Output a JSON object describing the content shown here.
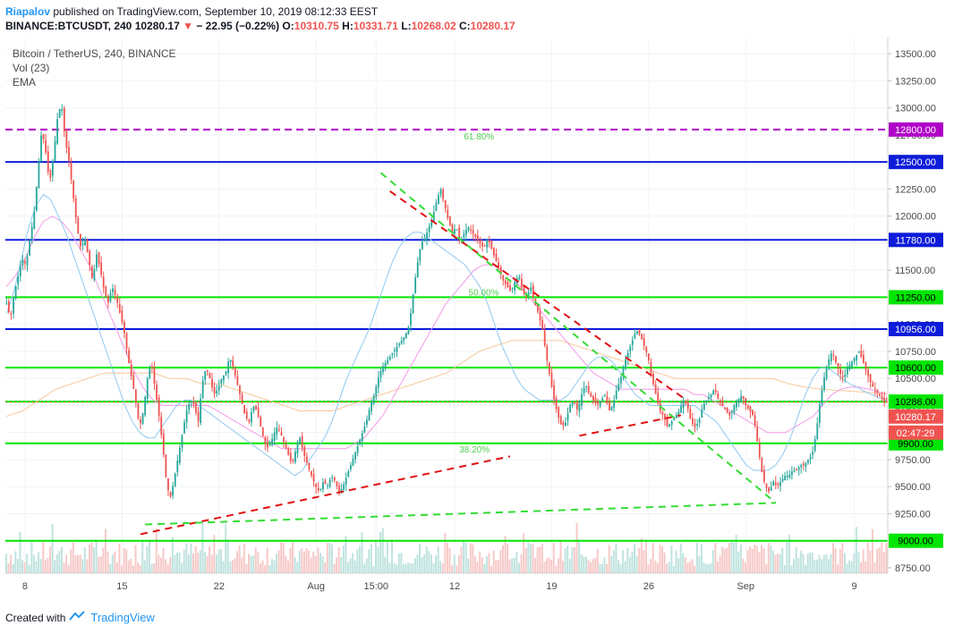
{
  "header": {
    "user": "Riapalov",
    "published": "published on TradingView.com, September 10, 2019 08:12:33 EEST"
  },
  "ohlc": {
    "symbol": "BINANCE:BTCUSDT, 240",
    "last": "10280.17",
    "change": "− 22.95 (−0.22%)",
    "o_label": "O:",
    "o": "10310.75",
    "h_label": "H:",
    "h": "10331.71",
    "l_label": "L:",
    "l": "10268.02",
    "c_label": "C:",
    "c": "10280.17"
  },
  "legend": {
    "title": "Bitcoin / TetherUS, 240, BINANCE",
    "vol": "Vol (23)",
    "ema": "EMA"
  },
  "footer": {
    "created": "Created with",
    "brand": "TradingView"
  },
  "colors": {
    "up": "#26a69a",
    "down": "#ef5350",
    "green_level": "#00e600",
    "blue_level": "#0d1cd9",
    "magenta_level": "#b000c8",
    "red_trend": "#e01010",
    "green_trend": "#33dd33",
    "ema_fast": "#8ec9f0",
    "ema_mid": "#f29ae6",
    "ema_slow": "#f6c89a",
    "last_price_badge": "#ef5350",
    "countdown_badge": "#ef5350"
  },
  "chart_data": {
    "type": "candlestick",
    "symbol": "BTC/USDT",
    "timeframe": "240",
    "exchange": "BINANCE",
    "ylim": [
      8700,
      13650
    ],
    "y_ticks": [
      8750,
      9000,
      9250,
      9500,
      9750,
      10000,
      10250,
      10500,
      10750,
      11000,
      11250,
      11500,
      11750,
      12000,
      12250,
      12500,
      12750,
      13000,
      13250,
      13500
    ],
    "y_tick_labels": [
      "8750.00",
      "9000.00",
      "9250.00",
      "9500.00",
      "9750.00",
      "10000.00",
      "10250.00",
      "10500.00",
      "10750.00",
      "11000.00",
      "11250.00",
      "11500.00",
      "11750.00",
      "12000.00",
      "12250.00",
      "12500.00",
      "12750.00",
      "13000.00",
      "13250.00",
      "13500.00"
    ],
    "x_tick_labels": [
      {
        "label": "8",
        "bar": 8
      },
      {
        "label": "15",
        "bar": 50
      },
      {
        "label": "22",
        "bar": 92
      },
      {
        "label": "Aug",
        "bar": 134
      },
      {
        "label": "15:00",
        "bar": 160
      },
      {
        "label": "12",
        "bar": 194
      },
      {
        "label": "19",
        "bar": 236
      },
      {
        "label": "26",
        "bar": 278
      },
      {
        "label": "Sep",
        "bar": 320
      },
      {
        "label": "9",
        "bar": 367
      }
    ],
    "bar_count": 382,
    "closes": [
      11200,
      11050,
      11300,
      11450,
      11600,
      11550,
      11800,
      12000,
      12400,
      12800,
      12600,
      12300,
      12550,
      12900,
      13050,
      12700,
      12500,
      12200,
      11900,
      11700,
      11800,
      11600,
      11400,
      11650,
      11500,
      11300,
      11200,
      11350,
      11250,
      11100,
      10950,
      10700,
      10500,
      10300,
      10050,
      10200,
      10500,
      10650,
      10400,
      10150,
      9850,
      9500,
      9400,
      9600,
      9800,
      10000,
      10200,
      10300,
      10250,
      10100,
      10450,
      10600,
      10500,
      10350,
      10400,
      10500,
      10550,
      10700,
      10600,
      10450,
      10300,
      10150,
      10100,
      10250,
      10200,
      10050,
      9900,
      9850,
      9950,
      10050,
      10000,
      9900,
      9800,
      9700,
      9850,
      9950,
      9800,
      9700,
      9600,
      9500,
      9450,
      9550,
      9500,
      9600,
      9550,
      9450,
      9500,
      9600,
      9700,
      9800,
      9900,
      10000,
      10100,
      10250,
      10350,
      10500,
      10600,
      10650,
      10700,
      10750,
      10800,
      10850,
      10900,
      11000,
      11300,
      11550,
      11750,
      11800,
      11900,
      12000,
      12150,
      12250,
      12100,
      11950,
      11850,
      11900,
      11750,
      11850,
      11900,
      11850,
      11800,
      11750,
      11700,
      11800,
      11700,
      11600,
      11500,
      11400,
      11350,
      11300,
      11400,
      11450,
      11300,
      11250,
      11350,
      11200,
      11100,
      10950,
      10700,
      10500,
      10300,
      10150,
      10050,
      10100,
      10250,
      10300,
      10200,
      10350,
      10450,
      10350,
      10300,
      10250,
      10300,
      10350,
      10200,
      10250,
      10400,
      10500,
      10650,
      10750,
      10850,
      10950,
      10900,
      10800,
      10700,
      10500,
      10350,
      10200,
      10150,
      10050,
      10100,
      10150,
      10200,
      10300,
      10250,
      10100,
      10050,
      10100,
      10250,
      10300,
      10350,
      10400,
      10300,
      10250,
      10200,
      10150,
      10250,
      10300,
      10350,
      10250,
      10200,
      10150,
      9900,
      9650,
      9500,
      9450,
      9550,
      9500,
      9550,
      9600,
      9600,
      9650,
      9650,
      9700,
      9700,
      9750,
      9800,
      10000,
      10300,
      10500,
      10650,
      10750,
      10650,
      10550,
      10500,
      10600,
      10650,
      10700,
      10750,
      10650,
      10550,
      10450,
      10400,
      10350,
      10300,
      10280
    ],
    "ema_fast": [
      11100,
      11300,
      11600,
      11900,
      12100,
      12200,
      12150,
      12000,
      11850,
      11650,
      11450,
      11250,
      11050,
      10850,
      10650,
      10450,
      10250,
      10100,
      10000,
      9950,
      9950,
      10050,
      10150,
      10250,
      10300,
      10300,
      10250,
      10200,
      10150,
      10100,
      10050,
      10000,
      9950,
      9900,
      9850,
      9800,
      9750,
      9700,
      9650,
      9600,
      9650,
      9750,
      9850,
      9950,
      10100,
      10300,
      10500,
      10650,
      10800,
      10950,
      11150,
      11350,
      11550,
      11700,
      11800,
      11850,
      11850,
      11800,
      11750,
      11700,
      11650,
      11600,
      11550,
      11450,
      11350,
      11200,
      11000,
      10800,
      10650,
      10500,
      10400,
      10350,
      10300,
      10300,
      10300,
      10300,
      10350,
      10450,
      10550,
      10650,
      10700,
      10700,
      10650,
      10550,
      10450,
      10350,
      10300,
      10250,
      10250,
      10250,
      10250,
      10250,
      10250,
      10250,
      10200,
      10150,
      10100,
      10000,
      9900,
      9800,
      9700,
      9650,
      9650,
      9650,
      9700,
      9800,
      9950,
      10150,
      10350,
      10500,
      10600,
      10600,
      10550,
      10500,
      10450,
      10420,
      10380,
      10350,
      10320,
      10300
    ],
    "ema_mid": [
      11350,
      11450,
      11600,
      11800,
      11950,
      12000,
      11950,
      11850,
      11700,
      11550,
      11350,
      11150,
      10950,
      10750,
      10550,
      10400,
      10300,
      10250,
      10250,
      10250,
      10250,
      10250,
      10250,
      10200,
      10150,
      10100,
      10050,
      10000,
      9950,
      9900,
      9850,
      9850,
      9850,
      9850,
      9850,
      9850,
      9850,
      9850,
      9900,
      9950,
      10050,
      10150,
      10300,
      10450,
      10600,
      10750,
      10900,
      11050,
      11200,
      11300,
      11400,
      11500,
      11550,
      11550,
      11500,
      11450,
      11350,
      11250,
      11150,
      11050,
      10950,
      10850,
      10750,
      10650,
      10550,
      10500,
      10450,
      10400,
      10400,
      10400,
      10400,
      10400,
      10400,
      10400,
      10400,
      10350,
      10350,
      10300,
      10250,
      10200,
      10150,
      10100,
      10050,
      10000,
      10000,
      10000,
      10050,
      10100,
      10150,
      10250,
      10350,
      10400,
      10420,
      10420,
      10400,
      10380,
      10350
    ],
    "ema_slow": [
      10150,
      10200,
      10300,
      10400,
      10450,
      10500,
      10550,
      10550,
      10550,
      10550,
      10500,
      10500,
      10450,
      10450,
      10400,
      10350,
      10300,
      10250,
      10200,
      10200,
      10200,
      10250,
      10300,
      10350,
      10400,
      10450,
      10500,
      10550,
      10650,
      10750,
      10800,
      10850,
      10850,
      10850,
      10850,
      10800,
      10750,
      10700,
      10650,
      10600,
      10550,
      10500,
      10500,
      10500,
      10500,
      10500,
      10500,
      10500,
      10450,
      10420,
      10400,
      10390,
      10380,
      10370,
      10360
    ],
    "horizontal_levels": [
      {
        "price": 12800,
        "label": "12800.00",
        "color": "#b000c8",
        "style": "dashed"
      },
      {
        "price": 12500,
        "label": "12500.00",
        "color": "#0d1cd9",
        "style": "solid"
      },
      {
        "price": 11780,
        "label": "11780.00",
        "color": "#0d1cd9",
        "style": "solid"
      },
      {
        "price": 11250,
        "label": "11250.00",
        "color": "#00e600",
        "style": "solid"
      },
      {
        "price": 10956,
        "label": "10956.00",
        "color": "#0d1cd9",
        "style": "solid"
      },
      {
        "price": 10600,
        "label": "10600.00",
        "color": "#00e600",
        "style": "solid"
      },
      {
        "price": 10286,
        "label": "10286.00",
        "color": "#00e600",
        "style": "solid"
      },
      {
        "price": 9900,
        "label": "9900.00",
        "color": "#00e600",
        "style": "solid"
      },
      {
        "price": 9000,
        "label": "9000.00",
        "color": "#00e600",
        "style": "solid"
      }
    ],
    "last_price": {
      "price": 10280.17,
      "label": "10280.17",
      "countdown": "02:47:29"
    },
    "fib_labels": [
      {
        "text": "61.80%",
        "price": 12740,
        "bar": 198
      },
      {
        "text": "50.00%",
        "price": 11300,
        "bar": 200
      },
      {
        "text": "38.20%",
        "price": 9850,
        "bar": 196
      }
    ],
    "trendlines": [
      {
        "color": "#e01010",
        "from": {
          "bar": 58,
          "price": 9060
        },
        "to": {
          "bar": 218,
          "price": 9780
        }
      },
      {
        "color": "#e01010",
        "from": {
          "bar": 166,
          "price": 12230
        },
        "to": {
          "bar": 293,
          "price": 10320
        }
      },
      {
        "color": "#e01010",
        "from": {
          "bar": 248,
          "price": 9970
        },
        "to": {
          "bar": 292,
          "price": 10160
        }
      },
      {
        "color": "#33dd33",
        "from": {
          "bar": 162,
          "price": 12400
        },
        "to": {
          "bar": 333,
          "price": 9350
        }
      },
      {
        "color": "#33dd33",
        "from": {
          "bar": 60,
          "price": 9150
        },
        "to": {
          "bar": 333,
          "price": 9350
        }
      }
    ]
  }
}
